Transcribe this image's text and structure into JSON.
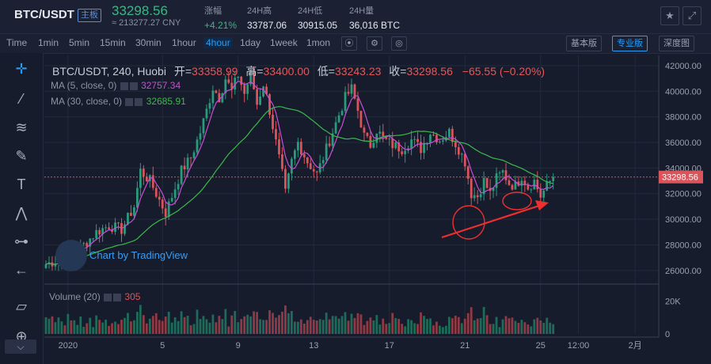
{
  "header": {
    "pair": "BTC/USDT",
    "pair_badge": "主板",
    "last_price": "33298.56",
    "cny_price": "≈ 213277.27 CNY",
    "stats": [
      {
        "label": "涨幅",
        "value": "+4.21%"
      },
      {
        "label": "24H高",
        "value": "33787.06"
      },
      {
        "label": "24H低",
        "value": "30915.05"
      },
      {
        "label": "24H量",
        "value": "36,016 BTC"
      }
    ],
    "star_icon": "star-icon",
    "fullscreen_icon": "fullscreen-icon"
  },
  "toolbar": {
    "timeframes": [
      "Time",
      "1min",
      "5min",
      "15min",
      "30min",
      "1hour",
      "4hour",
      "1day",
      "1week",
      "1mon"
    ],
    "active_timeframe": "4hour",
    "view_modes": [
      "基本版",
      "专业版",
      "深度图"
    ],
    "active_view_mode": "专业版"
  },
  "sidebar": {
    "tools": [
      "crosshair-icon",
      "trendline-icon",
      "fib-icon",
      "brush-icon",
      "text-icon",
      "pattern-icon",
      "measure-icon",
      "back-arrow-icon",
      "ruler-icon",
      "zoom-in-icon",
      "collapse-icon"
    ]
  },
  "legend": {
    "title": "BTC/USDT, 240, Huobi",
    "open_label": "开=",
    "open": "33358.99",
    "high_label": "高=",
    "high": "33400.00",
    "low_label": "低=",
    "low": "33243.23",
    "close_label": "收=",
    "close": "33298.56",
    "change": "−65.55 (−0.20%)",
    "ma5_label": "MA (5, close, 0)",
    "ma5_value": "32757.34",
    "ma30_label": "MA (30, close, 0)",
    "ma30_value": "32685.91",
    "volume_label": "Volume (20)",
    "volume_value": "305"
  },
  "watermark": "Chart by TradingView",
  "colors": {
    "up": "#2a9a7c",
    "down": "#d9545b",
    "ma5": "#c84fd6",
    "ma30": "#3cb94d",
    "accent": "#2a9cf2",
    "annotation": "#ee2f2f"
  },
  "chart_data": {
    "type": "candlestick",
    "price_axis": {
      "ticks": [
        "42000.00",
        "40000.00",
        "38000.00",
        "36000.00",
        "34000.00",
        "32000.00",
        "30000.00",
        "28000.00",
        "26000.00"
      ],
      "range": [
        25000,
        42800
      ],
      "last_price_label": "33298.56"
    },
    "volume_axis": {
      "ticks": [
        "20K",
        "0"
      ],
      "range": [
        0,
        30000
      ]
    },
    "x_axis": {
      "labels": [
        {
          "label": "2020",
          "candle": 7
        },
        {
          "label": "5",
          "candle": 37
        },
        {
          "label": "9",
          "candle": 61
        },
        {
          "label": "13",
          "candle": 85
        },
        {
          "label": "17",
          "candle": 109
        },
        {
          "label": "21",
          "candle": 133
        },
        {
          "label": "25",
          "candle": 157
        },
        {
          "label": "12:00",
          "candle": 169
        },
        {
          "label": "2月",
          "candle": 187
        }
      ],
      "total_slots": 195
    },
    "price_path": [
      [
        0,
        26500
      ],
      [
        6,
        27000
      ],
      [
        12,
        28000
      ],
      [
        16,
        29000
      ],
      [
        20,
        29500
      ],
      [
        24,
        29200
      ],
      [
        28,
        31000
      ],
      [
        30,
        33800
      ],
      [
        33,
        33000
      ],
      [
        36,
        31500
      ],
      [
        38,
        30500
      ],
      [
        40,
        31800
      ],
      [
        43,
        33800
      ],
      [
        46,
        34800
      ],
      [
        49,
        36800
      ],
      [
        51,
        38500
      ],
      [
        53,
        40300
      ],
      [
        55,
        39500
      ],
      [
        57,
        41000
      ],
      [
        59,
        40000
      ],
      [
        61,
        41300
      ],
      [
        63,
        39800
      ],
      [
        65,
        41400
      ],
      [
        67,
        39000
      ],
      [
        69,
        40600
      ],
      [
        71,
        38500
      ],
      [
        73,
        36000
      ],
      [
        75,
        33500
      ],
      [
        76,
        32000
      ],
      [
        78,
        34500
      ],
      [
        80,
        36000
      ],
      [
        83,
        34500
      ],
      [
        86,
        33500
      ],
      [
        89,
        35500
      ],
      [
        92,
        37500
      ],
      [
        95,
        39500
      ],
      [
        97,
        40200
      ],
      [
        99,
        38500
      ],
      [
        101,
        36500
      ],
      [
        103,
        35800
      ],
      [
        105,
        37000
      ],
      [
        107,
        36300
      ],
      [
        110,
        35800
      ],
      [
        113,
        35500
      ],
      [
        116,
        36200
      ],
      [
        119,
        35500
      ],
      [
        122,
        36800
      ],
      [
        125,
        36200
      ],
      [
        128,
        36800
      ],
      [
        131,
        35500
      ],
      [
        133,
        34500
      ],
      [
        135,
        32000
      ],
      [
        137,
        31800
      ],
      [
        139,
        33000
      ],
      [
        141,
        32000
      ],
      [
        143,
        33200
      ],
      [
        145,
        33700
      ],
      [
        147,
        32800
      ],
      [
        149,
        32600
      ],
      [
        151,
        33400
      ],
      [
        153,
        32500
      ],
      [
        155,
        33000
      ],
      [
        157,
        31800
      ],
      [
        159,
        32600
      ],
      [
        161,
        33298.56
      ]
    ],
    "ma5": [
      32757.34
    ],
    "ma30": [
      32685.91
    ],
    "annotations": {
      "arrow": true,
      "circles": 2
    }
  }
}
